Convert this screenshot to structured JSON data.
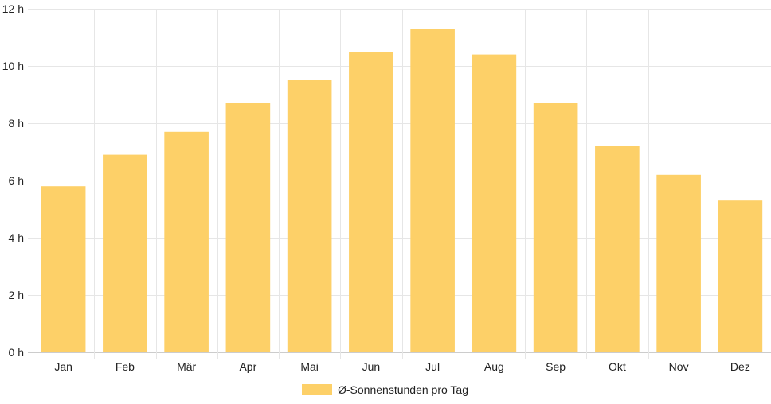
{
  "chart_data": {
    "type": "bar",
    "categories": [
      "Jan",
      "Feb",
      "Mär",
      "Apr",
      "Mai",
      "Jun",
      "Jul",
      "Aug",
      "Sep",
      "Okt",
      "Nov",
      "Dez"
    ],
    "series": [
      {
        "name": "Ø-Sonnenstunden pro Tag",
        "values": [
          5.8,
          6.9,
          7.7,
          8.7,
          9.5,
          10.5,
          11.3,
          10.4,
          8.7,
          7.2,
          6.2,
          5.3
        ],
        "color": "#fdd068"
      }
    ],
    "yticks": [
      0,
      2,
      4,
      6,
      8,
      10,
      12
    ],
    "ytick_suffix": " h",
    "ylim": [
      0,
      12
    ],
    "grid": true,
    "legend_position": "bottom"
  },
  "colors": {
    "bar_fill": "#fdd068",
    "grid": "#e6e6e6",
    "axis": "#cccccc",
    "text": "#222222"
  }
}
